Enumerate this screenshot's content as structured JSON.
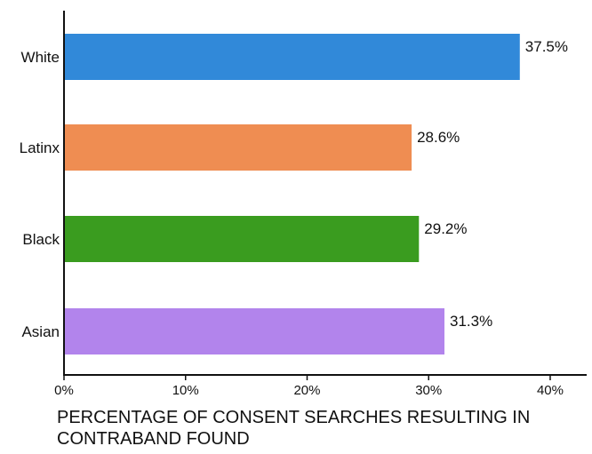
{
  "chart_data": {
    "type": "bar",
    "orientation": "horizontal",
    "categories": [
      "White",
      "Latinx",
      "Black",
      "Asian"
    ],
    "values": [
      37.5,
      28.6,
      29.2,
      31.3
    ],
    "value_labels": [
      "37.5%",
      "28.6%",
      "29.2%",
      "31.3%"
    ],
    "colors": [
      "#3189d9",
      "#ef8d52",
      "#3a9c1f",
      "#b284ec"
    ],
    "xlabel": "PERCENTAGE OF CONSENT SEARCHES RESULTING IN CONTRABAND FOUND",
    "xlim": [
      0,
      43
    ],
    "xticks": [
      0,
      10,
      20,
      30,
      40
    ],
    "xtick_labels": [
      "0%",
      "10%",
      "20%",
      "30%",
      "40%"
    ],
    "grid": false,
    "legend": "none"
  }
}
